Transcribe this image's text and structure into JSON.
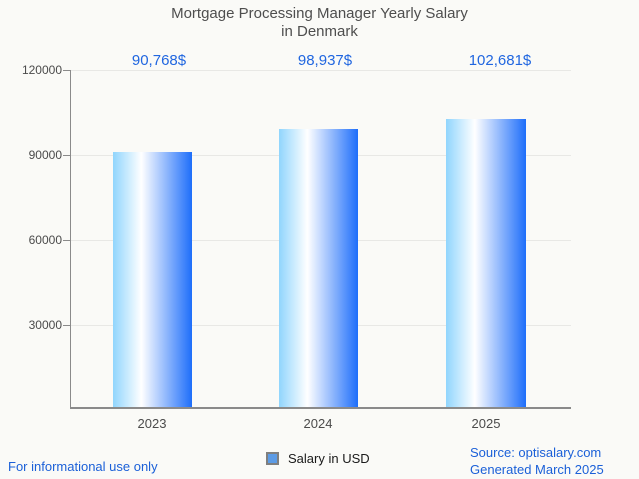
{
  "title": {
    "line1": "Mortgage Processing Manager Yearly Salary",
    "line2": "in Denmark"
  },
  "chart_data": {
    "type": "bar",
    "title": "Mortgage Processing Manager Yearly Salary in Denmark",
    "categories": [
      "2023",
      "2024",
      "2025"
    ],
    "series": [
      {
        "name": "Salary in USD",
        "values": [
          90768,
          98937,
          102681
        ]
      }
    ],
    "value_labels": [
      "90,768$",
      "98,937$",
      "102,681$"
    ],
    "xlabel": "",
    "ylabel": "",
    "ylim": [
      0,
      120000
    ],
    "yticks": [
      120000,
      90000,
      60000,
      30000
    ],
    "ytick_labels": [
      "120000",
      "90000",
      "60000",
      "30000"
    ],
    "grid": true,
    "legend_position": "bottom"
  },
  "legend": {
    "label": "Salary in USD"
  },
  "footer": {
    "left": "For informational use only",
    "source": "Source: optisalary.com",
    "generated": "Generated March 2025"
  },
  "colors": {
    "bg": "#FAFAF7",
    "title-gray": "#4E4E4E",
    "tick-gray": "#4B4B4B",
    "axis-gray": "#8A8A8A",
    "grid-gray": "#E8E8E5",
    "accent-blue": "#2066E0",
    "footer-blue": "#1B60D8",
    "bar-light": "#90D5FD",
    "bar-deep": "#1E6EFA",
    "legend-fill": "#5C9BE5",
    "legend-border": "#7F7F7F"
  }
}
